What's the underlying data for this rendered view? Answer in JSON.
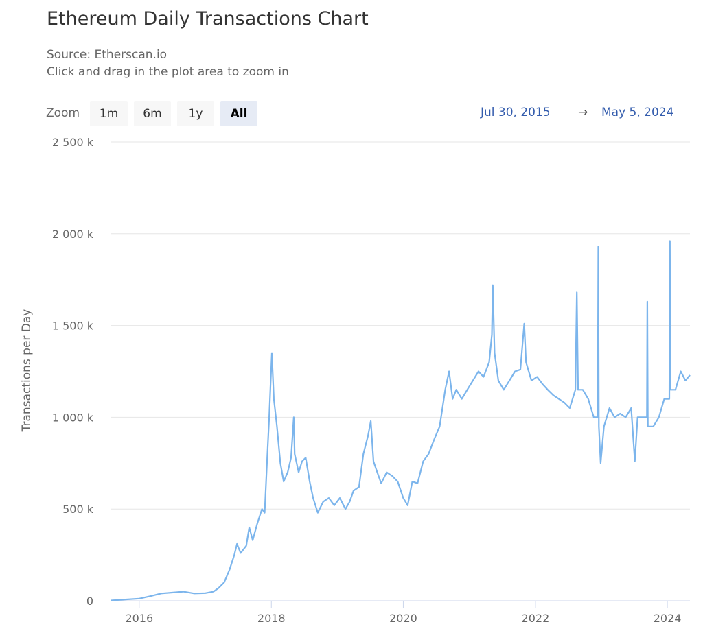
{
  "title": "Ethereum Daily Transactions Chart",
  "subtitle": "Source: Etherscan.io",
  "instruction": "Click and drag in the plot area to zoom in",
  "range_selector": {
    "label": "Zoom",
    "buttons": [
      {
        "label": "1m",
        "active": false
      },
      {
        "label": "6m",
        "active": false
      },
      {
        "label": "1y",
        "active": false
      },
      {
        "label": "All",
        "active": true
      }
    ],
    "from": "Jul 30, 2015",
    "arrow": "→",
    "to": "May 5, 2024"
  },
  "chart_data": {
    "type": "line",
    "title": "Ethereum Daily Transactions Chart",
    "ylabel": "Transactions per Day",
    "xlabel": "",
    "xlim": [
      "2015-07-30",
      "2024-05-05"
    ],
    "ylim": [
      0,
      2500000
    ],
    "yticks": [
      0,
      500000,
      1000000,
      1500000,
      2000000,
      2500000
    ],
    "ytick_labels": [
      "0",
      "500 k",
      "1 000 k",
      "1 500 k",
      "2 000 k",
      "2 500 k"
    ],
    "xticks": [
      "2016-01-01",
      "2018-01-01",
      "2020-01-01",
      "2022-01-01",
      "2024-01-01"
    ],
    "xtick_labels": [
      "2016",
      "2018",
      "2020",
      "2022",
      "2024"
    ],
    "grid": true,
    "color": "#7cb5ec",
    "series": [
      {
        "points": [
          [
            "2015-07-30",
            2000
          ],
          [
            "2015-10-01",
            6000
          ],
          [
            "2016-01-01",
            12000
          ],
          [
            "2016-03-01",
            25000
          ],
          [
            "2016-05-01",
            40000
          ],
          [
            "2016-07-01",
            45000
          ],
          [
            "2016-09-01",
            50000
          ],
          [
            "2016-11-01",
            40000
          ],
          [
            "2017-01-01",
            42000
          ],
          [
            "2017-02-15",
            50000
          ],
          [
            "2017-03-15",
            70000
          ],
          [
            "2017-04-15",
            100000
          ],
          [
            "2017-05-15",
            170000
          ],
          [
            "2017-06-10",
            250000
          ],
          [
            "2017-06-25",
            310000
          ],
          [
            "2017-07-15",
            260000
          ],
          [
            "2017-08-15",
            300000
          ],
          [
            "2017-09-01",
            400000
          ],
          [
            "2017-09-20",
            330000
          ],
          [
            "2017-10-15",
            420000
          ],
          [
            "2017-11-10",
            500000
          ],
          [
            "2017-11-25",
            480000
          ],
          [
            "2017-12-10",
            800000
          ],
          [
            "2017-12-20",
            1000000
          ],
          [
            "2018-01-04",
            1350000
          ],
          [
            "2018-01-15",
            1100000
          ],
          [
            "2018-02-01",
            950000
          ],
          [
            "2018-02-20",
            750000
          ],
          [
            "2018-03-10",
            650000
          ],
          [
            "2018-04-01",
            700000
          ],
          [
            "2018-04-20",
            780000
          ],
          [
            "2018-05-05",
            1000000
          ],
          [
            "2018-05-10",
            800000
          ],
          [
            "2018-06-01",
            700000
          ],
          [
            "2018-06-20",
            760000
          ],
          [
            "2018-07-10",
            780000
          ],
          [
            "2018-08-01",
            650000
          ],
          [
            "2018-08-20",
            560000
          ],
          [
            "2018-09-15",
            480000
          ],
          [
            "2018-10-15",
            540000
          ],
          [
            "2018-11-15",
            560000
          ],
          [
            "2018-12-15",
            520000
          ],
          [
            "2019-01-15",
            560000
          ],
          [
            "2019-02-15",
            500000
          ],
          [
            "2019-03-10",
            540000
          ],
          [
            "2019-04-01",
            600000
          ],
          [
            "2019-05-01",
            620000
          ],
          [
            "2019-05-25",
            800000
          ],
          [
            "2019-06-20",
            900000
          ],
          [
            "2019-07-05",
            980000
          ],
          [
            "2019-07-20",
            760000
          ],
          [
            "2019-08-10",
            700000
          ],
          [
            "2019-09-01",
            640000
          ],
          [
            "2019-10-01",
            700000
          ],
          [
            "2019-11-01",
            680000
          ],
          [
            "2019-12-01",
            650000
          ],
          [
            "2020-01-01",
            560000
          ],
          [
            "2020-01-25",
            520000
          ],
          [
            "2020-02-20",
            650000
          ],
          [
            "2020-03-20",
            640000
          ],
          [
            "2020-04-20",
            760000
          ],
          [
            "2020-05-20",
            800000
          ],
          [
            "2020-06-20",
            880000
          ],
          [
            "2020-07-20",
            950000
          ],
          [
            "2020-08-20",
            1150000
          ],
          [
            "2020-09-10",
            1250000
          ],
          [
            "2020-09-30",
            1100000
          ],
          [
            "2020-10-20",
            1150000
          ],
          [
            "2020-11-20",
            1100000
          ],
          [
            "2020-12-20",
            1150000
          ],
          [
            "2021-01-20",
            1200000
          ],
          [
            "2021-02-20",
            1250000
          ],
          [
            "2021-03-20",
            1220000
          ],
          [
            "2021-04-20",
            1300000
          ],
          [
            "2021-05-05",
            1450000
          ],
          [
            "2021-05-10",
            1720000
          ],
          [
            "2021-05-20",
            1350000
          ],
          [
            "2021-06-10",
            1200000
          ],
          [
            "2021-07-10",
            1150000
          ],
          [
            "2021-08-10",
            1200000
          ],
          [
            "2021-09-10",
            1250000
          ],
          [
            "2021-10-10",
            1260000
          ],
          [
            "2021-10-31",
            1510000
          ],
          [
            "2021-11-10",
            1300000
          ],
          [
            "2021-12-10",
            1200000
          ],
          [
            "2022-01-10",
            1220000
          ],
          [
            "2022-02-10",
            1180000
          ],
          [
            "2022-03-10",
            1150000
          ],
          [
            "2022-04-10",
            1120000
          ],
          [
            "2022-05-10",
            1100000
          ],
          [
            "2022-06-10",
            1080000
          ],
          [
            "2022-07-10",
            1050000
          ],
          [
            "2022-08-10",
            1150000
          ],
          [
            "2022-08-18",
            1680000
          ],
          [
            "2022-08-25",
            1150000
          ],
          [
            "2022-09-20",
            1150000
          ],
          [
            "2022-10-20",
            1100000
          ],
          [
            "2022-11-20",
            1000000
          ],
          [
            "2022-12-12",
            1000000
          ],
          [
            "2022-12-15",
            1930000
          ],
          [
            "2022-12-18",
            950000
          ],
          [
            "2022-12-28",
            750000
          ],
          [
            "2023-01-15",
            950000
          ],
          [
            "2023-02-15",
            1050000
          ],
          [
            "2023-03-15",
            1000000
          ],
          [
            "2023-04-15",
            1020000
          ],
          [
            "2023-05-15",
            1000000
          ],
          [
            "2023-06-15",
            1050000
          ],
          [
            "2023-07-05",
            760000
          ],
          [
            "2023-07-20",
            1000000
          ],
          [
            "2023-08-20",
            1000000
          ],
          [
            "2023-09-10",
            1000000
          ],
          [
            "2023-09-12",
            1630000
          ],
          [
            "2023-09-15",
            950000
          ],
          [
            "2023-10-15",
            950000
          ],
          [
            "2023-11-15",
            1000000
          ],
          [
            "2023-12-15",
            1100000
          ],
          [
            "2024-01-12",
            1100000
          ],
          [
            "2024-01-15",
            1960000
          ],
          [
            "2024-01-18",
            1150000
          ],
          [
            "2024-02-15",
            1150000
          ],
          [
            "2024-03-15",
            1250000
          ],
          [
            "2024-04-10",
            1200000
          ],
          [
            "2024-05-05",
            1230000
          ]
        ]
      }
    ]
  }
}
